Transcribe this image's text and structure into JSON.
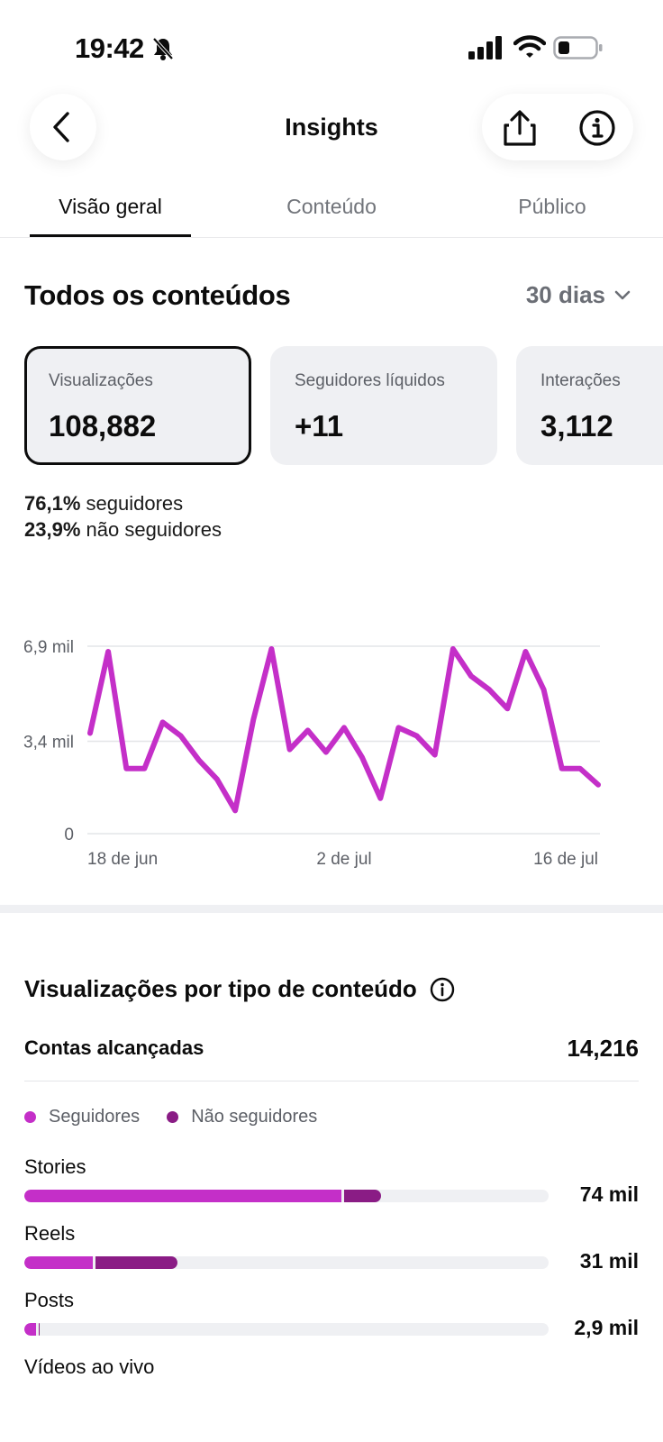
{
  "status_bar": {
    "time": "19:42",
    "icons": [
      "bell-slash-icon",
      "signal-icon",
      "wifi-icon",
      "battery-icon"
    ]
  },
  "header": {
    "title": "Insights",
    "icons": [
      "chevron-left-icon",
      "share-icon",
      "info-icon"
    ]
  },
  "tabs": [
    {
      "label": "Visão geral",
      "active": true
    },
    {
      "label": "Conteúdo",
      "active": false
    },
    {
      "label": "Público",
      "active": false
    }
  ],
  "overview": {
    "title": "Todos os conteúdos",
    "range": "30 dias",
    "metrics": [
      {
        "label": "Visualizações",
        "value": "108,882",
        "selected": true
      },
      {
        "label": "Seguidores líquidos",
        "value": "+11",
        "selected": false
      },
      {
        "label": "Interações",
        "value": "3,112",
        "selected": false
      }
    ],
    "split": [
      {
        "percent": "76,1%",
        "label": "seguidores"
      },
      {
        "percent": "23,9%",
        "label": "não seguidores"
      }
    ]
  },
  "chart_data": {
    "type": "line",
    "title": "",
    "xlabel": "",
    "ylabel": "",
    "x_tick_labels": [
      "18 de jun",
      "2 de jul",
      "16 de jul"
    ],
    "y_tick_labels": [
      "6,9 mil",
      "3,4 mil",
      "0"
    ],
    "y_tick_values": [
      6900,
      3400,
      0
    ],
    "ylim": [
      0,
      6900
    ],
    "grid": true,
    "color": "#c42fc8",
    "series": [
      {
        "values": [
          3700,
          6700,
          2400,
          2400,
          4100,
          3600,
          2700,
          2000,
          850,
          4200,
          6800,
          3100,
          3800,
          3000,
          3900,
          2800,
          1300,
          3900,
          3600,
          2900,
          6800,
          5800,
          5300,
          4600,
          6700,
          5300,
          2400,
          2400,
          1800
        ]
      }
    ]
  },
  "by_type": {
    "title": "Visualizações por tipo de conteúdo",
    "reach_label": "Contas alcançadas",
    "reach_value": "14,216",
    "legend": [
      {
        "label": "Seguidores",
        "color": "#c42fc8"
      },
      {
        "label": "Não seguidores",
        "color": "#8a1c85"
      }
    ],
    "rows": [
      {
        "label": "Stories",
        "value": "74 mil",
        "followers_fraction": 0.605,
        "non_followers_fraction": 0.075
      },
      {
        "label": "Reels",
        "value": "31 mil",
        "followers_fraction": 0.13,
        "non_followers_fraction": 0.162
      },
      {
        "label": "Posts",
        "value": "2,9 mil",
        "followers_fraction": 0.022,
        "non_followers_fraction": 0.006
      },
      {
        "label": "Vídeos ao vivo",
        "value": "",
        "followers_fraction": 0,
        "non_followers_fraction": 0
      }
    ]
  }
}
